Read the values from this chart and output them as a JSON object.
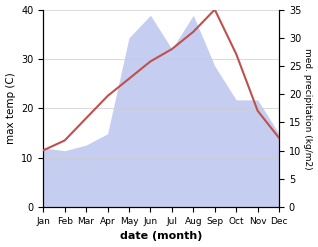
{
  "months": [
    "Jan",
    "Feb",
    "Mar",
    "Apr",
    "May",
    "Jun",
    "Jul",
    "Aug",
    "Sep",
    "Oct",
    "Nov",
    "Dec"
  ],
  "temp": [
    11.5,
    13.5,
    18.0,
    22.5,
    26.0,
    29.5,
    32.0,
    35.5,
    40.0,
    31.0,
    19.5,
    14.0
  ],
  "precip": [
    10.5,
    10.0,
    11.0,
    13.0,
    30.0,
    34.0,
    28.0,
    34.0,
    25.0,
    19.0,
    19.0,
    13.0
  ],
  "temp_color": "#c0504d",
  "precip_fill_color": "#c5cef0",
  "precip_line_color": "#8899cc",
  "left_ylim": [
    0,
    40
  ],
  "right_ylim": [
    0,
    35
  ],
  "left_yticks": [
    0,
    10,
    20,
    30,
    40
  ],
  "right_yticks": [
    0,
    5,
    10,
    15,
    20,
    25,
    30,
    35
  ],
  "ylabel_left": "max temp (C)",
  "ylabel_right": "med. precipitation (kg/m2)",
  "xlabel": "date (month)",
  "fig_width": 3.18,
  "fig_height": 2.47,
  "dpi": 100
}
